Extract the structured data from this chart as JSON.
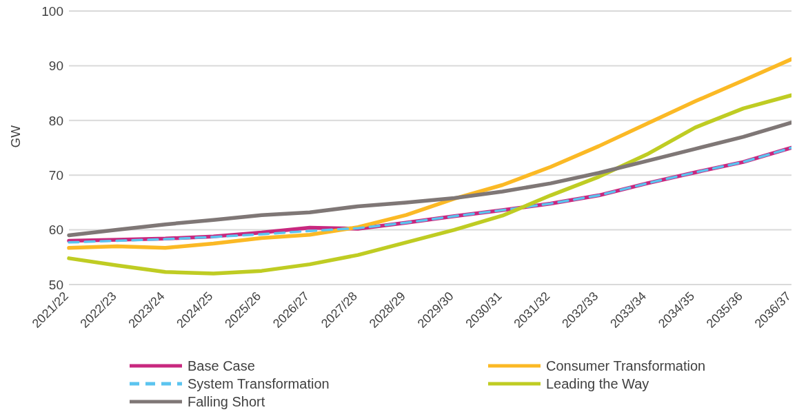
{
  "chart_data": {
    "type": "line",
    "ylabel": "GW",
    "categories": [
      "2021/22",
      "2022/23",
      "2023/24",
      "2024/25",
      "2025/26",
      "2026/27",
      "2027/28",
      "2028/29",
      "2029/30",
      "2030/31",
      "2031/32",
      "2032/33",
      "2033/34",
      "2034/35",
      "2035/36",
      "2036/37"
    ],
    "series": [
      {
        "name": "Base Case",
        "color": "#c8287f",
        "values": [
          58.0,
          58.2,
          58.4,
          58.8,
          59.5,
          60.4,
          60.2,
          61.3,
          62.5,
          63.6,
          64.8,
          66.3,
          68.5,
          70.5,
          72.4,
          75.0
        ]
      },
      {
        "name": "Consumer Transformation",
        "color": "#fbb925",
        "values": [
          56.7,
          57.0,
          56.7,
          57.5,
          58.5,
          59.1,
          60.5,
          62.7,
          65.7,
          68.2,
          71.5,
          75.3,
          79.4,
          83.5,
          87.3,
          91.2
        ]
      },
      {
        "name": "System Transformation",
        "color": "#5bc4ef",
        "line_style": "dashed",
        "values": [
          57.7,
          58.0,
          58.3,
          58.7,
          59.2,
          59.8,
          60.3,
          61.3,
          62.5,
          63.6,
          64.8,
          66.3,
          68.5,
          70.5,
          72.4,
          75.0
        ]
      },
      {
        "name": "Leading the Way",
        "color": "#bfcc23",
        "values": [
          54.8,
          53.5,
          52.3,
          52.0,
          52.5,
          53.7,
          55.4,
          57.7,
          60.0,
          62.6,
          66.3,
          69.7,
          73.8,
          78.7,
          82.2,
          84.6
        ]
      },
      {
        "name": "Falling Short",
        "color": "#7f7776",
        "values": [
          59.0,
          60.0,
          61.0,
          61.8,
          62.7,
          63.2,
          64.3,
          65.0,
          65.8,
          67.0,
          68.5,
          70.4,
          72.6,
          74.8,
          77.0,
          79.6
        ]
      }
    ],
    "ylim": [
      50,
      100
    ],
    "yticks": [
      50,
      60,
      70,
      80,
      90,
      100
    ],
    "grid": "y",
    "legend": "bottom",
    "marker": "none",
    "line_style": "solid"
  }
}
